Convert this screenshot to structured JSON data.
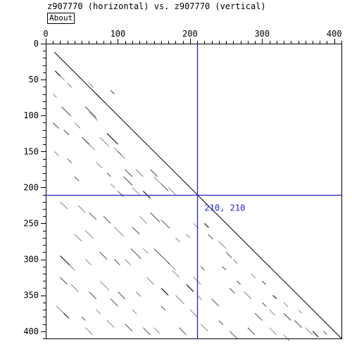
{
  "window": {
    "title": "z907770 (horizontal) vs. z907770 (vertical)"
  },
  "toolbar": {
    "about_label": "About"
  },
  "colors": {
    "cursor": "#2222cc",
    "diagonal": "#000000",
    "dots": "#000000",
    "frame": "#000000"
  },
  "cursor": {
    "x": 210,
    "y": 210,
    "label": "210, 210"
  },
  "chart_data": {
    "type": "scatter",
    "title": "",
    "xlabel": "",
    "ylabel": "",
    "xlim": [
      0,
      411
    ],
    "ylim": [
      0,
      411
    ],
    "x_ticks": [
      0,
      100,
      200,
      300,
      400
    ],
    "y_ticks": [
      0,
      50,
      100,
      150,
      200,
      250,
      300,
      350,
      400
    ],
    "main_diagonal": {
      "from": [
        12,
        12
      ],
      "to": [
        411,
        411
      ]
    },
    "match_segments": [
      [
        13,
        38,
        20,
        45
      ],
      [
        20,
        45,
        26,
        51
      ],
      [
        30,
        55,
        36,
        61
      ],
      [
        22,
        88,
        35,
        101
      ],
      [
        55,
        88,
        70,
        103
      ],
      [
        60,
        95,
        72,
        107
      ],
      [
        10,
        110,
        18,
        118
      ],
      [
        40,
        110,
        48,
        118
      ],
      [
        25,
        120,
        32,
        127
      ],
      [
        50,
        130,
        60,
        140
      ],
      [
        55,
        135,
        68,
        148
      ],
      [
        75,
        130,
        88,
        143
      ],
      [
        85,
        125,
        100,
        140
      ],
      [
        95,
        145,
        105,
        155
      ],
      [
        100,
        150,
        110,
        160
      ],
      [
        110,
        175,
        120,
        185
      ],
      [
        108,
        185,
        120,
        197
      ],
      [
        125,
        175,
        135,
        185
      ],
      [
        145,
        175,
        155,
        185
      ],
      [
        150,
        185,
        160,
        195
      ],
      [
        160,
        195,
        170,
        205
      ],
      [
        100,
        205,
        108,
        213
      ],
      [
        120,
        200,
        130,
        210
      ],
      [
        170,
        200,
        180,
        210
      ],
      [
        135,
        205,
        145,
        215
      ],
      [
        20,
        220,
        30,
        230
      ],
      [
        45,
        225,
        55,
        235
      ],
      [
        60,
        235,
        70,
        245
      ],
      [
        80,
        240,
        90,
        250
      ],
      [
        95,
        255,
        108,
        268
      ],
      [
        120,
        255,
        130,
        265
      ],
      [
        130,
        240,
        140,
        250
      ],
      [
        145,
        235,
        158,
        248
      ],
      [
        160,
        245,
        172,
        257
      ],
      [
        40,
        265,
        50,
        275
      ],
      [
        55,
        260,
        66,
        271
      ],
      [
        20,
        295,
        33,
        308
      ],
      [
        30,
        305,
        40,
        315
      ],
      [
        55,
        300,
        63,
        308
      ],
      [
        75,
        290,
        85,
        300
      ],
      [
        95,
        300,
        103,
        308
      ],
      [
        110,
        300,
        118,
        308
      ],
      [
        118,
        285,
        132,
        299
      ],
      [
        135,
        285,
        142,
        292
      ],
      [
        150,
        285,
        160,
        295
      ],
      [
        160,
        295,
        172,
        307
      ],
      [
        170,
        305,
        180,
        315
      ],
      [
        175,
        315,
        185,
        325
      ],
      [
        195,
        335,
        205,
        345
      ],
      [
        205,
        325,
        215,
        335
      ],
      [
        240,
        275,
        250,
        285
      ],
      [
        250,
        290,
        258,
        298
      ],
      [
        20,
        325,
        30,
        335
      ],
      [
        35,
        335,
        45,
        345
      ],
      [
        60,
        345,
        70,
        355
      ],
      [
        75,
        330,
        88,
        343
      ],
      [
        90,
        355,
        100,
        365
      ],
      [
        100,
        345,
        110,
        355
      ],
      [
        125,
        345,
        132,
        352
      ],
      [
        140,
        325,
        150,
        335
      ],
      [
        160,
        340,
        170,
        350
      ],
      [
        185,
        355,
        192,
        362
      ],
      [
        200,
        370,
        210,
        380
      ],
      [
        230,
        355,
        240,
        365
      ],
      [
        255,
        340,
        262,
        347
      ],
      [
        275,
        345,
        285,
        355
      ],
      [
        290,
        375,
        300,
        385
      ],
      [
        310,
        370,
        318,
        378
      ],
      [
        330,
        375,
        340,
        385
      ],
      [
        345,
        385,
        355,
        395
      ],
      [
        360,
        395,
        370,
        405
      ],
      [
        15,
        365,
        25,
        375
      ],
      [
        25,
        375,
        32,
        382
      ],
      [
        55,
        395,
        65,
        405
      ],
      [
        85,
        385,
        95,
        395
      ],
      [
        110,
        390,
        120,
        400
      ],
      [
        135,
        395,
        145,
        405
      ],
      [
        150,
        395,
        158,
        403
      ],
      [
        185,
        395,
        195,
        405
      ],
      [
        215,
        390,
        225,
        400
      ],
      [
        255,
        400,
        265,
        410
      ],
      [
        280,
        395,
        290,
        405
      ],
      [
        310,
        395,
        320,
        405
      ],
      [
        330,
        405,
        338,
        413
      ],
      [
        370,
        400,
        378,
        408
      ],
      [
        60,
        55,
        66,
        61
      ],
      [
        10,
        70,
        15,
        75
      ],
      [
        70,
        70,
        76,
        76
      ],
      [
        90,
        65,
        95,
        70
      ],
      [
        12,
        150,
        18,
        156
      ],
      [
        30,
        160,
        36,
        166
      ],
      [
        70,
        165,
        78,
        173
      ],
      [
        40,
        185,
        46,
        191
      ],
      [
        85,
        180,
        90,
        185
      ],
      [
        90,
        195,
        96,
        201
      ],
      [
        205,
        250,
        212,
        257
      ],
      [
        220,
        250,
        226,
        256
      ],
      [
        180,
        270,
        186,
        276
      ],
      [
        195,
        265,
        200,
        270
      ],
      [
        225,
        265,
        232,
        272
      ],
      [
        245,
        310,
        250,
        315
      ],
      [
        260,
        300,
        266,
        306
      ],
      [
        265,
        330,
        270,
        335
      ],
      [
        285,
        320,
        291,
        326
      ],
      [
        300,
        330,
        305,
        335
      ],
      [
        215,
        310,
        220,
        315
      ],
      [
        180,
        350,
        186,
        356
      ],
      [
        210,
        350,
        216,
        356
      ],
      [
        315,
        350,
        320,
        355
      ],
      [
        330,
        360,
        336,
        366
      ],
      [
        350,
        370,
        355,
        375
      ],
      [
        240,
        385,
        246,
        391
      ],
      [
        300,
        360,
        306,
        366
      ],
      [
        120,
        370,
        126,
        376
      ],
      [
        50,
        380,
        55,
        385
      ],
      [
        70,
        370,
        76,
        376
      ],
      [
        160,
        365,
        166,
        371
      ],
      [
        385,
        400,
        390,
        405
      ]
    ]
  }
}
